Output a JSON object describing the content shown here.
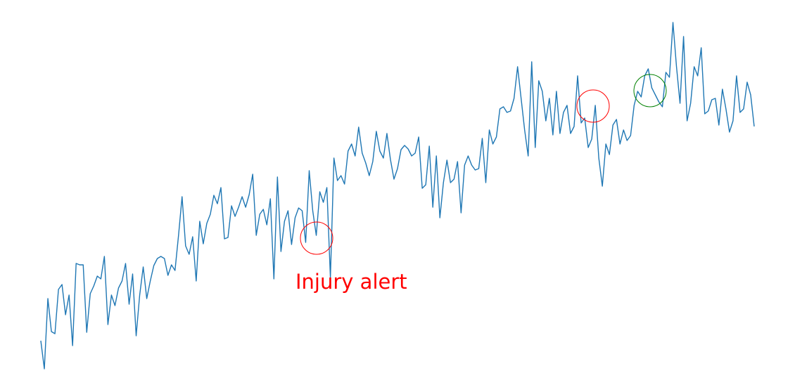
{
  "chart_data": {
    "type": "line",
    "color": "#1f77b4",
    "annotation": "Injury alert",
    "annotation_color": "#ff0000",
    "ylim": [
      0,
      550
    ],
    "values": [
      65,
      25,
      125,
      78,
      75,
      138,
      145,
      102,
      130,
      58,
      175,
      173,
      173,
      77,
      132,
      143,
      157,
      153,
      185,
      88,
      130,
      115,
      140,
      150,
      175,
      117,
      160,
      72,
      130,
      170,
      125,
      150,
      172,
      182,
      185,
      182,
      158,
      173,
      165,
      215,
      270,
      200,
      188,
      213,
      150,
      235,
      203,
      232,
      245,
      272,
      260,
      283,
      210,
      212,
      257,
      242,
      255,
      270,
      255,
      273,
      302,
      215,
      245,
      252,
      230,
      267,
      153,
      298,
      192,
      235,
      250,
      202,
      240,
      254,
      250,
      205,
      307,
      250,
      215,
      277,
      262,
      283,
      155,
      325,
      293,
      300,
      288,
      335,
      345,
      328,
      369,
      332,
      318,
      300,
      320,
      363,
      335,
      325,
      360,
      323,
      295,
      310,
      337,
      343,
      338,
      328,
      332,
      355,
      282,
      287,
      342,
      255,
      328,
      240,
      290,
      322,
      290,
      295,
      320,
      247,
      315,
      328,
      315,
      308,
      310,
      353,
      290,
      365,
      345,
      355,
      395,
      398,
      390,
      392,
      410,
      455,
      410,
      365,
      328,
      462,
      340,
      435,
      420,
      378,
      410,
      358,
      420,
      360,
      390,
      400,
      360,
      370,
      442,
      375,
      382,
      340,
      352,
      400,
      325,
      285,
      345,
      330,
      372,
      380,
      345,
      365,
      350,
      357,
      400,
      420,
      412,
      442,
      452,
      425,
      415,
      405,
      398,
      447,
      440,
      518,
      455,
      403,
      498,
      378,
      403,
      455,
      442,
      482,
      388,
      392,
      408,
      410,
      372,
      423,
      395,
      362,
      378,
      442,
      390,
      395,
      433,
      415,
      370
    ]
  }
}
